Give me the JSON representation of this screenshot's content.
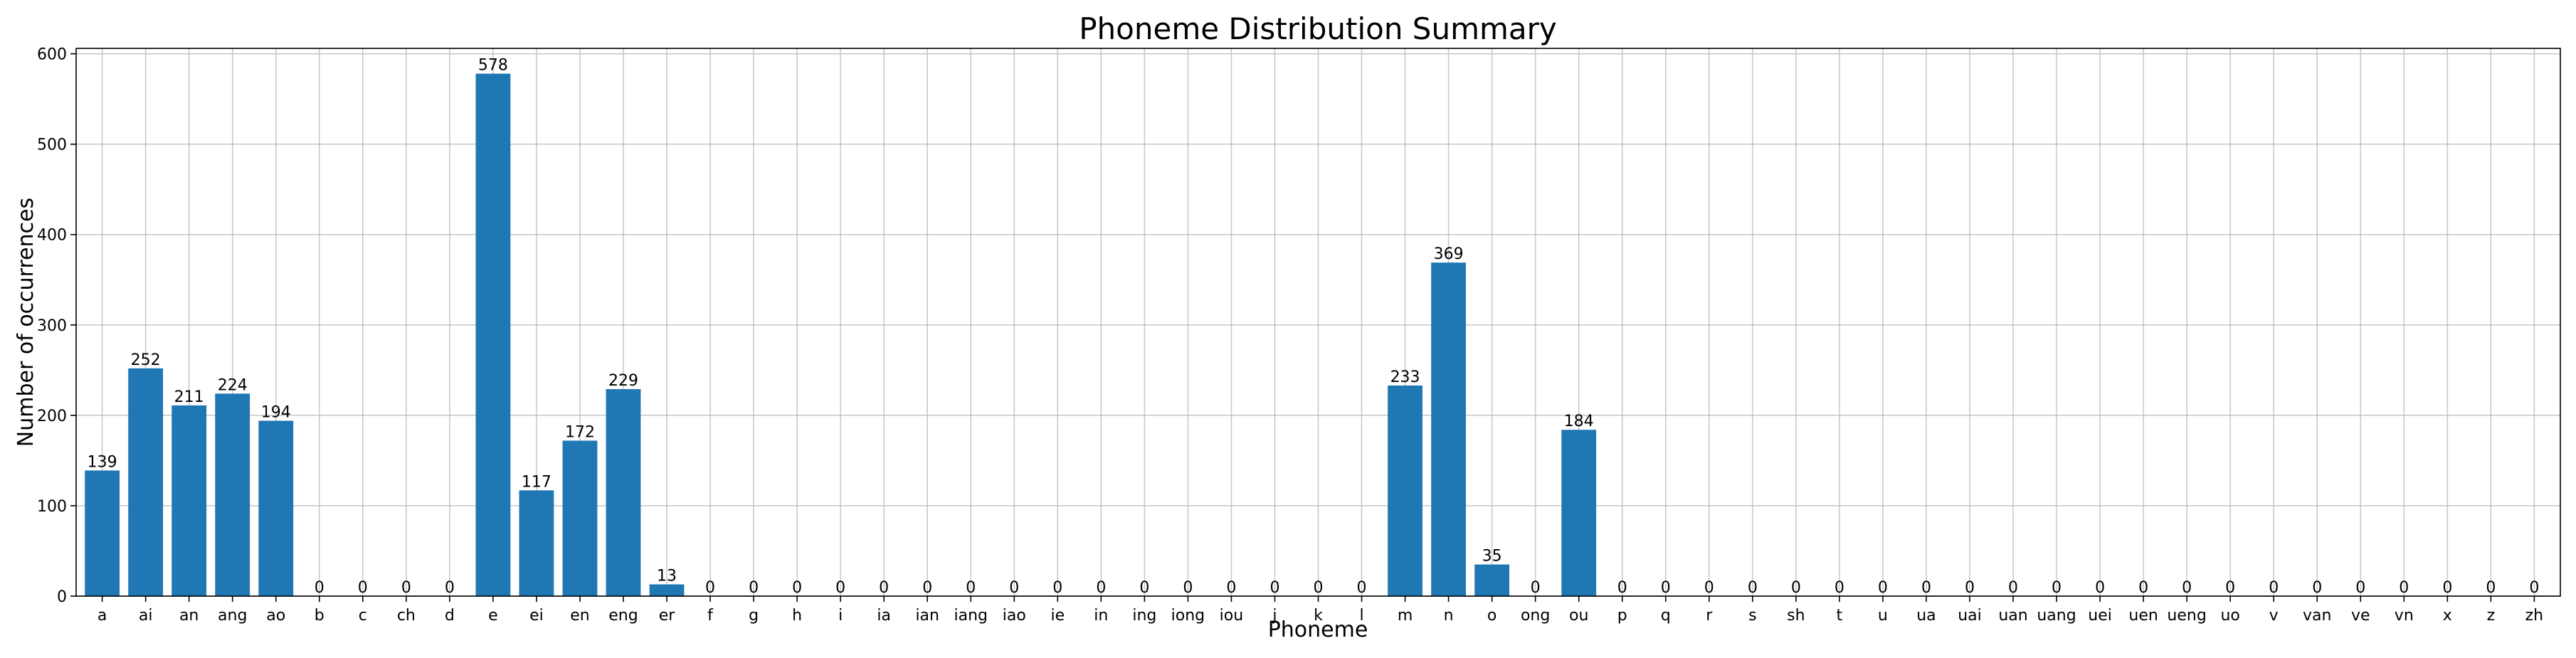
{
  "chart_data": {
    "type": "bar",
    "title": "Phoneme Distribution Summary",
    "xlabel": "Phoneme",
    "ylabel": "Number of occurrences",
    "ylim": [
      0,
      606
    ],
    "yticks": [
      0,
      100,
      200,
      300,
      400,
      500,
      600
    ],
    "grid": true,
    "bar_color": "#1f77b4",
    "categories": [
      "a",
      "ai",
      "an",
      "ang",
      "ao",
      "b",
      "c",
      "ch",
      "d",
      "e",
      "ei",
      "en",
      "eng",
      "er",
      "f",
      "g",
      "h",
      "i",
      "ia",
      "ian",
      "iang",
      "iao",
      "ie",
      "in",
      "ing",
      "iong",
      "iou",
      "j",
      "k",
      "l",
      "m",
      "n",
      "o",
      "ong",
      "ou",
      "p",
      "q",
      "r",
      "s",
      "sh",
      "t",
      "u",
      "ua",
      "uai",
      "uan",
      "uang",
      "uei",
      "uen",
      "ueng",
      "uo",
      "v",
      "van",
      "ve",
      "vn",
      "x",
      "z",
      "zh"
    ],
    "values": [
      139,
      252,
      211,
      224,
      194,
      0,
      0,
      0,
      0,
      578,
      117,
      172,
      229,
      13,
      0,
      0,
      0,
      0,
      0,
      0,
      0,
      0,
      0,
      0,
      0,
      0,
      0,
      0,
      0,
      0,
      233,
      369,
      35,
      0,
      184,
      0,
      0,
      0,
      0,
      0,
      0,
      0,
      0,
      0,
      0,
      0,
      0,
      0,
      0,
      0,
      0,
      0,
      0,
      0,
      0,
      0,
      0
    ]
  }
}
